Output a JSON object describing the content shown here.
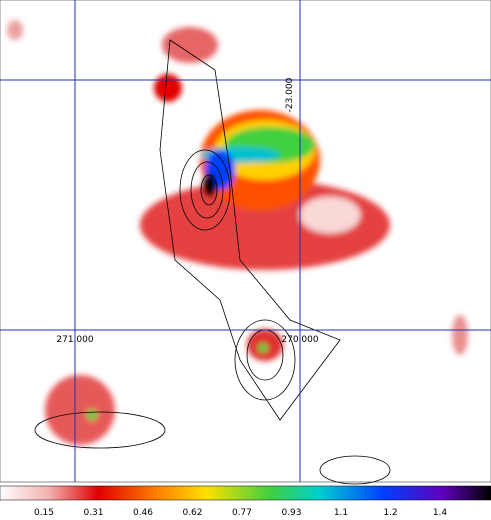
{
  "image": {
    "grid_labels": [
      "-23.000",
      "271.000",
      "270.000"
    ]
  },
  "colorbar": {
    "ticks": [
      "0.15",
      "0.31",
      "0.46",
      "0.62",
      "0.77",
      "0.93",
      "1.1",
      "1.2",
      "1.4"
    ]
  }
}
